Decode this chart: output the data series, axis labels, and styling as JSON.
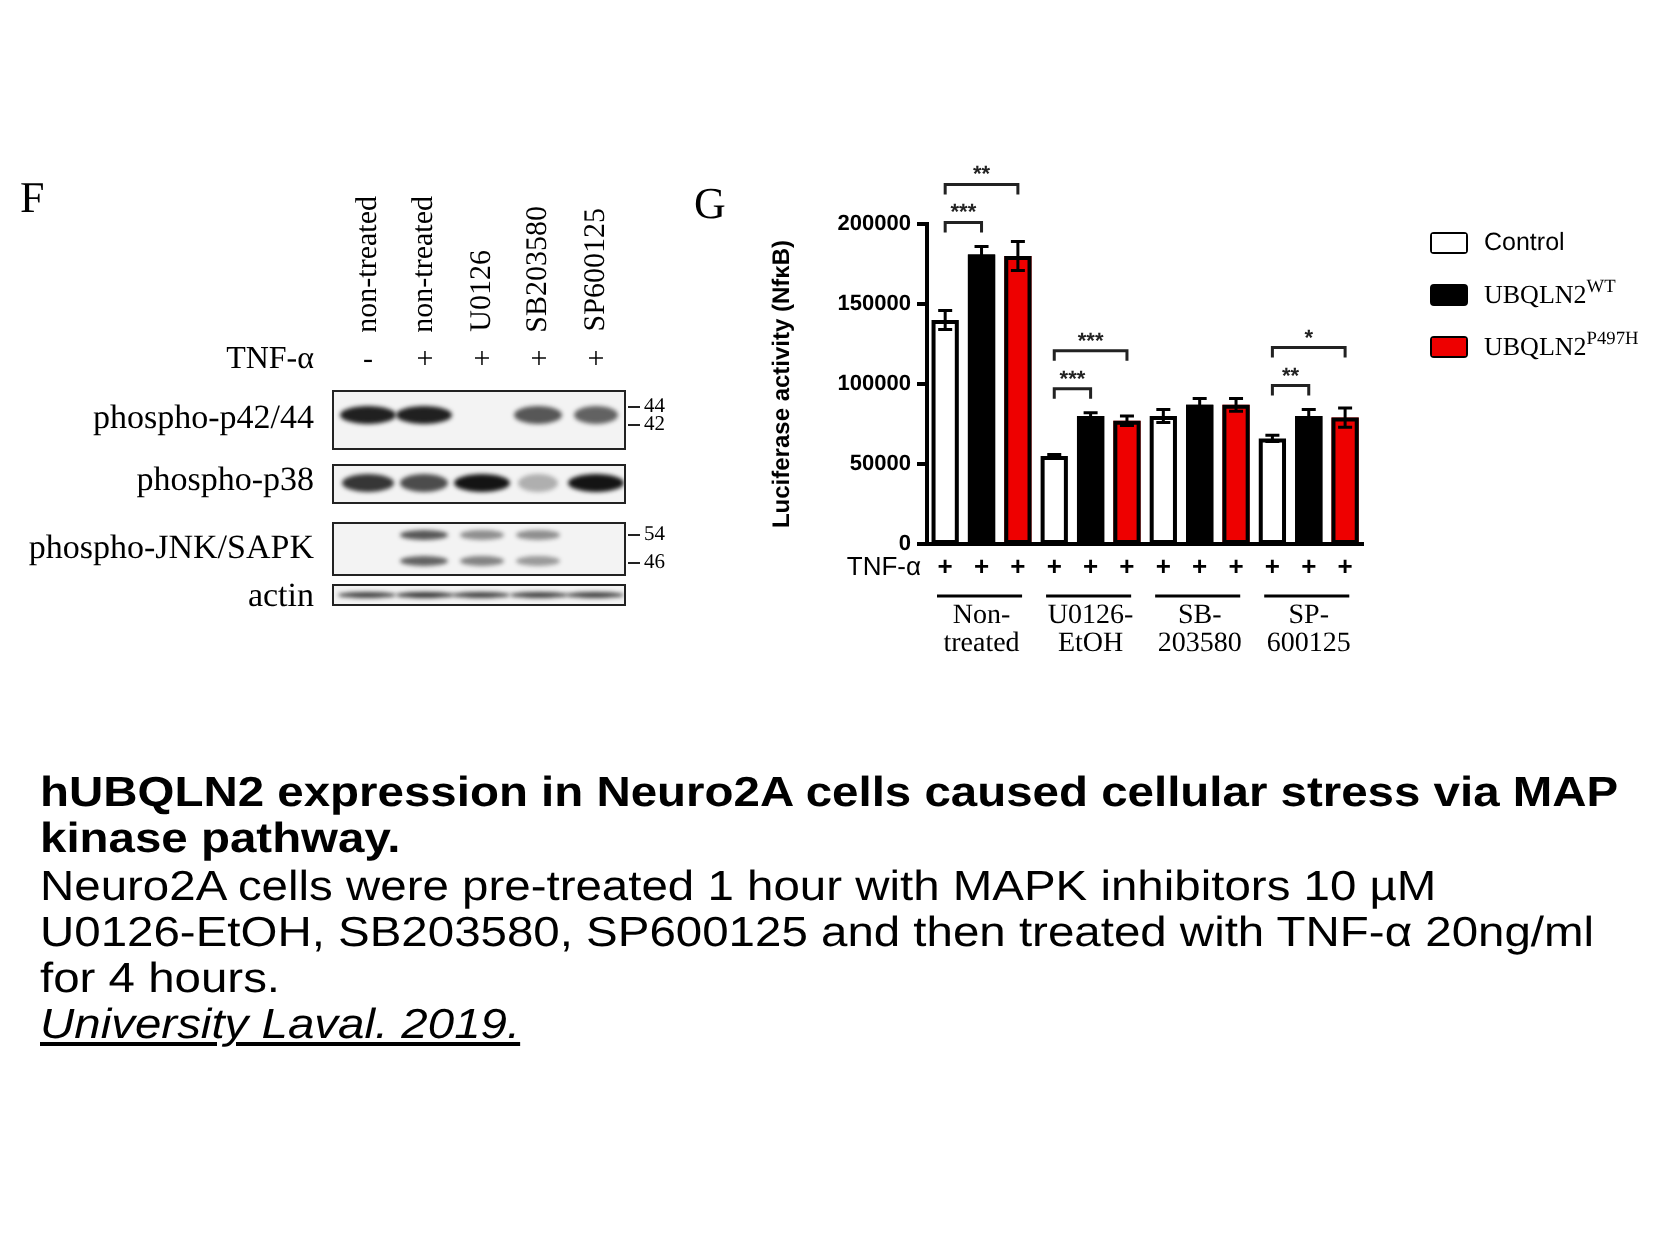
{
  "chart_data": [
    {
      "type": "other",
      "title": "F",
      "categories": [
        "non-treated",
        "non-treated",
        "U0126",
        "SB203580",
        "SP600125"
      ],
      "annotations": [
        "TNF-α",
        "-",
        "+",
        "+",
        "+",
        "+",
        "phospho-p42/44",
        "phospho-p38",
        "phospho-JNK/SAPK",
        "actin",
        "44",
        "42",
        "54",
        "46"
      ]
    },
    {
      "type": "bar",
      "title": "G",
      "ylabel": "Luciferase activity (NfκB)",
      "categories": [
        "Non-treated",
        "U0126-EtOH",
        "SB-203580",
        "SP-600125"
      ],
      "series": [
        {
          "name": "Control",
          "color": "#ffffff",
          "values": [
            140000,
            55000,
            80000,
            66000
          ],
          "errors": [
            6000,
            1000,
            4000,
            2000
          ]
        },
        {
          "name": "UBQLN2$^{WT}$",
          "color": "#000000",
          "values": [
            181000,
            80000,
            87000,
            80000
          ],
          "errors": [
            5000,
            2000,
            4000,
            4000
          ]
        },
        {
          "name": "UBQLN2$^{P497H}$",
          "color": "#ee0000",
          "values": [
            180000,
            77000,
            87000,
            79000
          ],
          "errors": [
            9000,
            3000,
            4000,
            6000
          ]
        }
      ],
      "ylim": [
        0,
        200000
      ],
      "yticks": [
        0,
        50000,
        100000,
        150000,
        200000
      ],
      "legend": "right",
      "annotations": [
        "TNF-α",
        "+",
        "+",
        "+",
        "+",
        "+",
        "+",
        "+",
        "+",
        "+",
        "+",
        "+",
        "+",
        "***",
        "**",
        "***",
        "***",
        "**",
        "*"
      ]
    },
    {
      "type": "other",
      "title": "hUBQLN2 expression in Neuro2A cells caused cellular stress via MAP kinase pathway.",
      "annotations": [
        "Neuro2A cells were pre-treated 1 hour with MAPK inhibitors 10 µM U0126-EtOH, SB203580, SP600125 and then treated with TNF-α 20ng/ml for 4 hours.",
        "University Laval. 2019."
      ]
    }
  ]
}
